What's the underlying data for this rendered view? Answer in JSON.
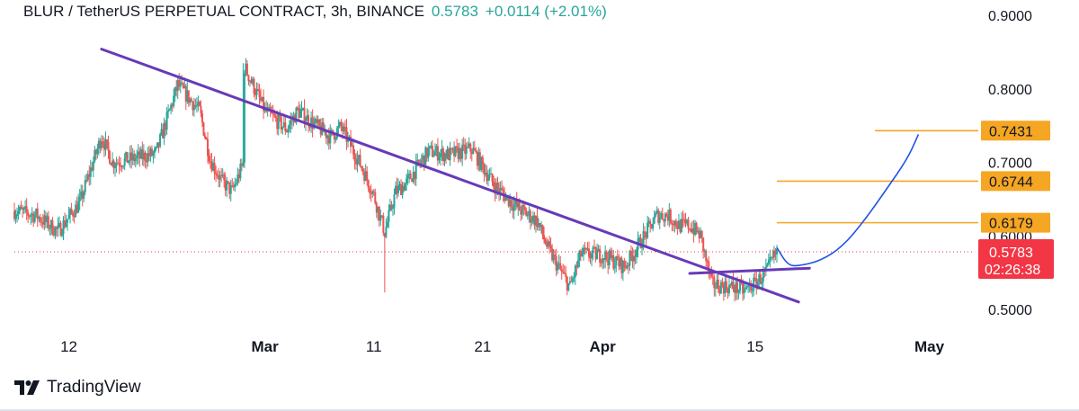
{
  "header": {
    "symbol": "BLUR / TetherUS PERPETUAL CONTRACT, 3h, BINANCE",
    "last_price": "0.5783",
    "change": "+0.0114 (+2.01%)"
  },
  "footer": {
    "brand": "TradingView"
  },
  "colors": {
    "up": "#26a69a",
    "down": "#ef5350",
    "trendline": "#673ab7",
    "level": "#f5a623",
    "projection": "#1e53e5",
    "price_label": "#f23645",
    "current_line": "#f23645"
  },
  "chart_data": {
    "type": "candlestick",
    "timeframe": "3h",
    "ylim": [
      0.48,
      0.92
    ],
    "y_ticks": [
      "0.9000",
      "0.8000",
      "0.7000",
      "0.6000",
      "0.5000"
    ],
    "x_ticks": [
      "12",
      "Mar",
      "11",
      "21",
      "Apr",
      "15",
      "May"
    ],
    "x_tick_dates": [
      "2024-02-12",
      "2024-03-01",
      "2024-03-11",
      "2024-03-21",
      "2024-04-01",
      "2024-04-15",
      "2024-05-01"
    ],
    "x_range": [
      "2024-02-07",
      "2024-05-05"
    ],
    "price_path": [
      [
        "2024-02-07",
        0.634
      ],
      [
        "2024-02-09",
        0.628
      ],
      [
        "2024-02-11",
        0.606
      ],
      [
        "2024-02-13",
        0.645
      ],
      [
        "2024-02-15",
        0.735
      ],
      [
        "2024-02-16",
        0.7
      ],
      [
        "2024-02-18",
        0.705
      ],
      [
        "2024-02-20",
        0.712
      ],
      [
        "2024-02-22",
        0.805
      ],
      [
        "2024-02-24",
        0.77
      ],
      [
        "2024-02-25",
        0.703
      ],
      [
        "2024-02-26",
        0.675
      ],
      [
        "2024-02-27",
        0.66
      ],
      [
        "2024-02-28",
        0.698
      ],
      [
        "2024-02-28",
        0.83
      ],
      [
        "2024-03-01",
        0.77
      ],
      [
        "2024-03-03",
        0.745
      ],
      [
        "2024-03-04",
        0.77
      ],
      [
        "2024-03-06",
        0.746
      ],
      [
        "2024-03-07",
        0.735
      ],
      [
        "2024-03-08",
        0.748
      ],
      [
        "2024-03-10",
        0.69
      ],
      [
        "2024-03-11",
        0.655
      ],
      [
        "2024-03-12",
        0.605
      ],
      [
        "2024-03-13",
        0.66
      ],
      [
        "2024-03-14",
        0.672
      ],
      [
        "2024-03-16",
        0.715
      ],
      [
        "2024-03-18",
        0.71
      ],
      [
        "2024-03-20",
        0.718
      ],
      [
        "2024-03-22",
        0.67
      ],
      [
        "2024-03-24",
        0.64
      ],
      [
        "2024-03-26",
        0.62
      ],
      [
        "2024-03-27",
        0.582
      ],
      [
        "2024-03-29",
        0.53
      ],
      [
        "2024-03-30",
        0.575
      ],
      [
        "2024-04-01",
        0.574
      ],
      [
        "2024-04-03",
        0.558
      ],
      [
        "2024-04-04",
        0.58
      ],
      [
        "2024-04-06",
        0.628
      ],
      [
        "2024-04-07",
        0.628
      ],
      [
        "2024-04-08",
        0.614
      ],
      [
        "2024-04-09",
        0.614
      ],
      [
        "2024-04-10",
        0.6
      ],
      [
        "2024-04-11",
        0.534
      ],
      [
        "2024-04-12",
        0.532
      ],
      [
        "2024-04-13",
        0.53
      ],
      [
        "2024-04-14",
        0.525
      ],
      [
        "2024-04-15",
        0.535
      ],
      [
        "2024-04-16",
        0.55
      ],
      [
        "2024-04-17",
        0.578
      ]
    ],
    "wicks": [
      {
        "date": "2024-03-12",
        "low": 0.523
      },
      {
        "date": "2024-02-22",
        "high": 0.815
      },
      {
        "date": "2024-02-28",
        "high": 0.835
      }
    ],
    "price_levels": [
      {
        "label": "0.7431",
        "value": 0.7431,
        "from": "2024-04-26"
      },
      {
        "label": "0.6744",
        "value": 0.6744,
        "from": "2024-04-17"
      },
      {
        "label": "0.6179",
        "value": 0.6179,
        "from": "2024-04-17"
      }
    ],
    "current_price": {
      "value": 0.5783,
      "label": "0.5783",
      "countdown": "02:26:38"
    },
    "trendlines": [
      {
        "name": "descending-resistance",
        "from": [
          "2024-02-15",
          0.854
        ],
        "to": [
          "2024-04-19",
          0.51
        ]
      },
      {
        "name": "support",
        "from": [
          "2024-04-09",
          0.549
        ],
        "to": [
          "2024-04-20",
          0.556
        ]
      }
    ],
    "projection_curve": [
      [
        "2024-04-17",
        0.584
      ],
      [
        "2024-04-18",
        0.56
      ],
      [
        "2024-04-19",
        0.559
      ],
      [
        "2024-04-21",
        0.566
      ],
      [
        "2024-04-23",
        0.585
      ],
      [
        "2024-04-25",
        0.62
      ],
      [
        "2024-04-27",
        0.662
      ],
      [
        "2024-04-29",
        0.705
      ],
      [
        "2024-04-30",
        0.738
      ]
    ]
  }
}
